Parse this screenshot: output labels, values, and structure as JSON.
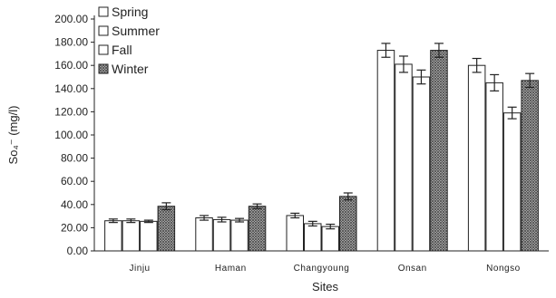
{
  "chart_data": {
    "type": "bar",
    "xlabel": "Sites",
    "ylabel": "So₄⁻ (mg/l)",
    "ylim": [
      0,
      200
    ],
    "ytick_step": 20,
    "ytick_format": "0.00",
    "legend_position": "top-left",
    "categories": [
      "Jinju",
      "Haman",
      "Changyoung",
      "Onsan",
      "Nongso"
    ],
    "series": [
      {
        "name": "Spring",
        "values": [
          26,
          28.5,
          30.5,
          173,
          160
        ],
        "errors": [
          1.5,
          2,
          2,
          6,
          6
        ],
        "fill": "white"
      },
      {
        "name": "Summer",
        "values": [
          26,
          27,
          23.5,
          161,
          145
        ],
        "errors": [
          1.5,
          2,
          2,
          7,
          7
        ],
        "fill": "white"
      },
      {
        "name": "Fall",
        "values": [
          25.5,
          26.5,
          21,
          150,
          119
        ],
        "errors": [
          1,
          1.5,
          2,
          6,
          5
        ],
        "fill": "white"
      },
      {
        "name": "Winter",
        "values": [
          38.5,
          38.5,
          47,
          173,
          147
        ],
        "errors": [
          3,
          2,
          3,
          6,
          6
        ],
        "fill": "crosshatch"
      }
    ]
  },
  "colors": {
    "axis": "#222222",
    "bar_edge": "#222222",
    "hatch": "#555555"
  }
}
